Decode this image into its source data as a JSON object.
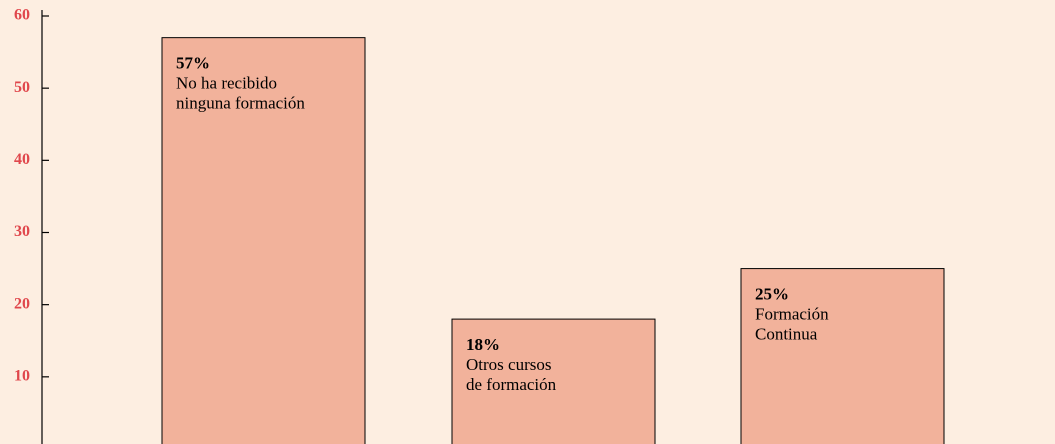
{
  "chart_data": {
    "type": "bar",
    "categories": [
      [
        "No ha recibido",
        "ninguna formación"
      ],
      [
        "Otros cursos",
        "de formación"
      ],
      [
        "Formación",
        "Continua"
      ]
    ],
    "values": [
      57,
      18,
      25
    ],
    "value_labels": [
      "57%",
      "18%",
      "25%"
    ],
    "color": "#f2b29b",
    "ylim": [
      0,
      60
    ],
    "yticks": [
      10,
      20,
      30,
      40,
      50,
      60
    ]
  }
}
